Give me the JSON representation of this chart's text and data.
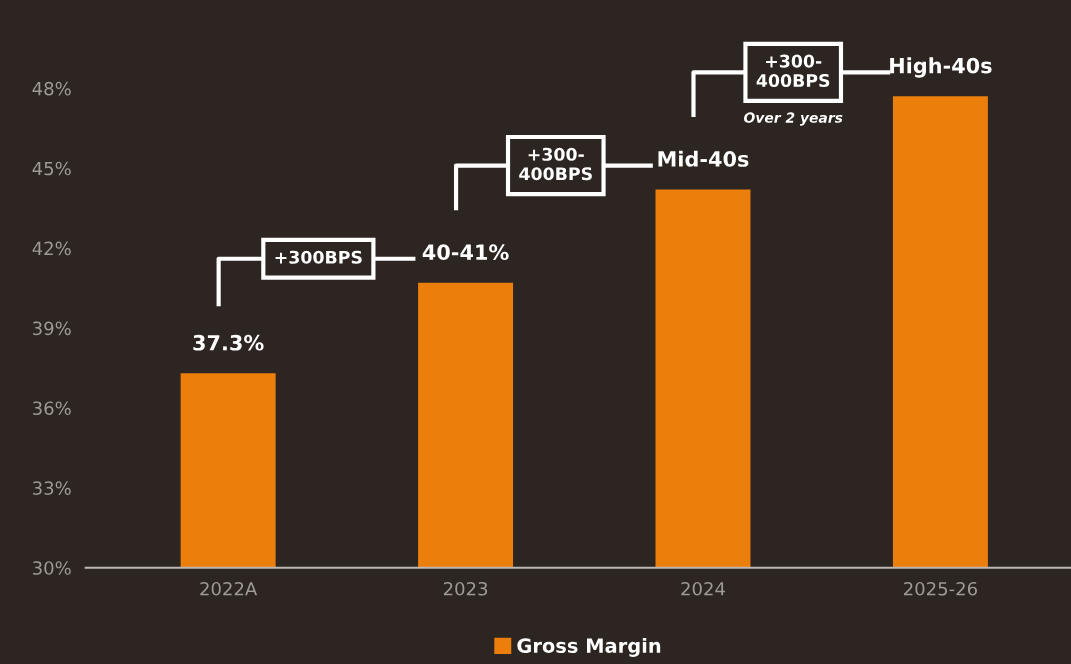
{
  "chart_data": {
    "type": "bar",
    "categories": [
      "2022A",
      "2023",
      "2024",
      "2025-26"
    ],
    "series": [
      {
        "name": "Gross Margin",
        "color": "#ec7f0c",
        "values": [
          37.3,
          40.7,
          44.2,
          47.7
        ]
      }
    ],
    "ylim": [
      30,
      48
    ],
    "yticks": [
      {
        "value": 30,
        "label": "30%"
      },
      {
        "value": 33,
        "label": "33%"
      },
      {
        "value": 36,
        "label": "36%"
      },
      {
        "value": 39,
        "label": "39%"
      },
      {
        "value": 42,
        "label": "42%"
      },
      {
        "value": 45,
        "label": "45%"
      },
      {
        "value": 48,
        "label": "48%"
      }
    ],
    "grid": false,
    "legend": "bottom",
    "annotations": [
      {
        "text": "37.3%",
        "x": "2022A",
        "y": 37.3
      },
      {
        "text": "40-41%",
        "x": "2023",
        "y": 40.7
      },
      {
        "text": "Mid-40s",
        "x": "2024",
        "y": 44.2
      },
      {
        "text": "High-40s",
        "x": "2025-26",
        "y": 47.7
      },
      "+300BPS",
      "+300-\n400BPS",
      "+300-\n400BPS",
      "Over 2 years"
    ]
  }
}
